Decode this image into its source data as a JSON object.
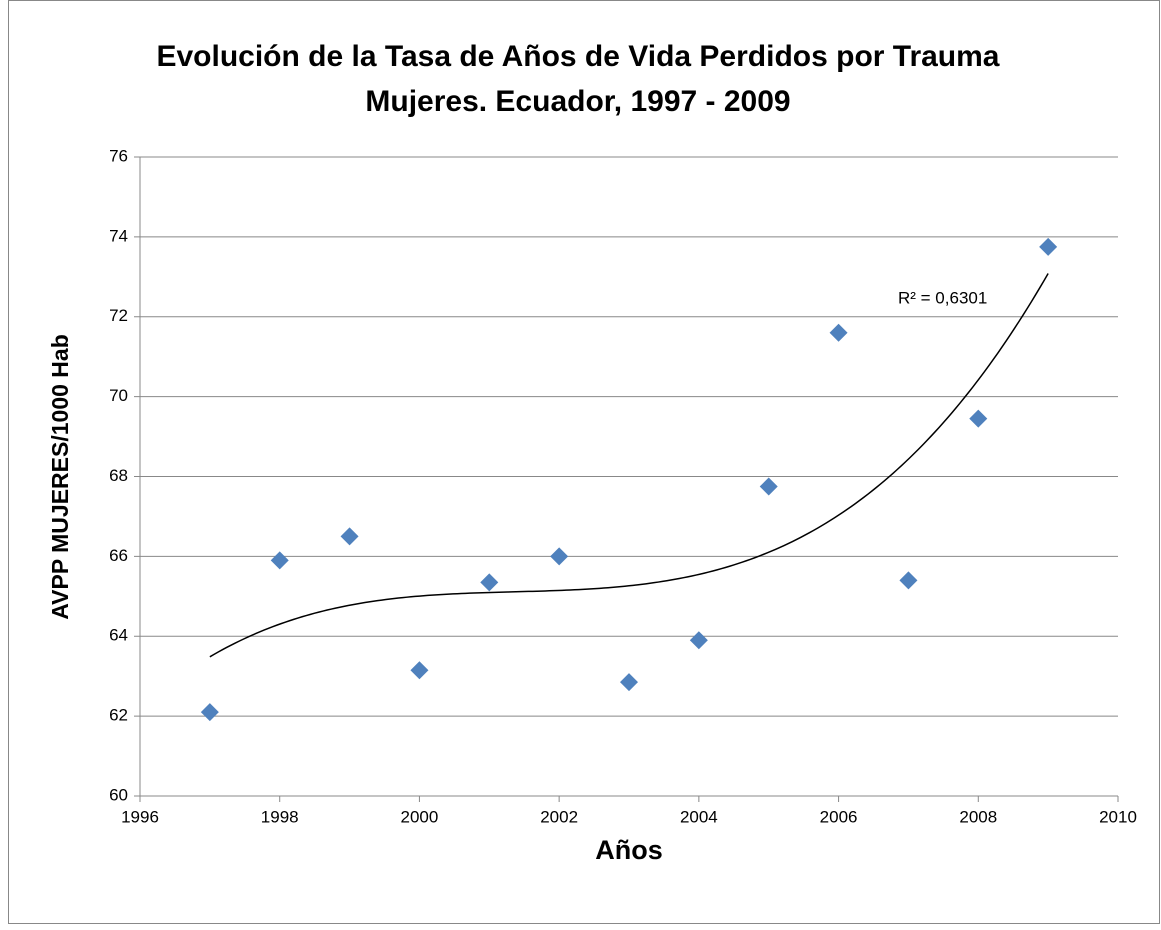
{
  "chart_data": {
    "type": "scatter",
    "title": [
      "Evolución de la Tasa de Años de Vida Perdidos por Trauma",
      "Mujeres. Ecuador, 1997 - 2009"
    ],
    "x_label": "Años",
    "y_label": "AVPP  MUJERES/1000 Hab",
    "annotation": "R² = 0,6301",
    "x": [
      1997,
      1998,
      1999,
      2000,
      2001,
      2002,
      2003,
      2004,
      2005,
      2006,
      2007,
      2008,
      2009
    ],
    "values": [
      62.1,
      65.9,
      66.5,
      63.15,
      65.35,
      66.0,
      62.85,
      63.9,
      67.75,
      71.6,
      65.4,
      69.45,
      73.75
    ],
    "color": "#4f81bd",
    "trendline": "polynomial-3",
    "xlim": [
      1996,
      2010
    ],
    "xticks": [
      1996,
      1998,
      2000,
      2002,
      2004,
      2006,
      2008,
      2010
    ],
    "ylim": [
      60,
      76
    ],
    "yticks": [
      60,
      62,
      64,
      66,
      68,
      70,
      72,
      74,
      76
    ],
    "grid": true
  }
}
